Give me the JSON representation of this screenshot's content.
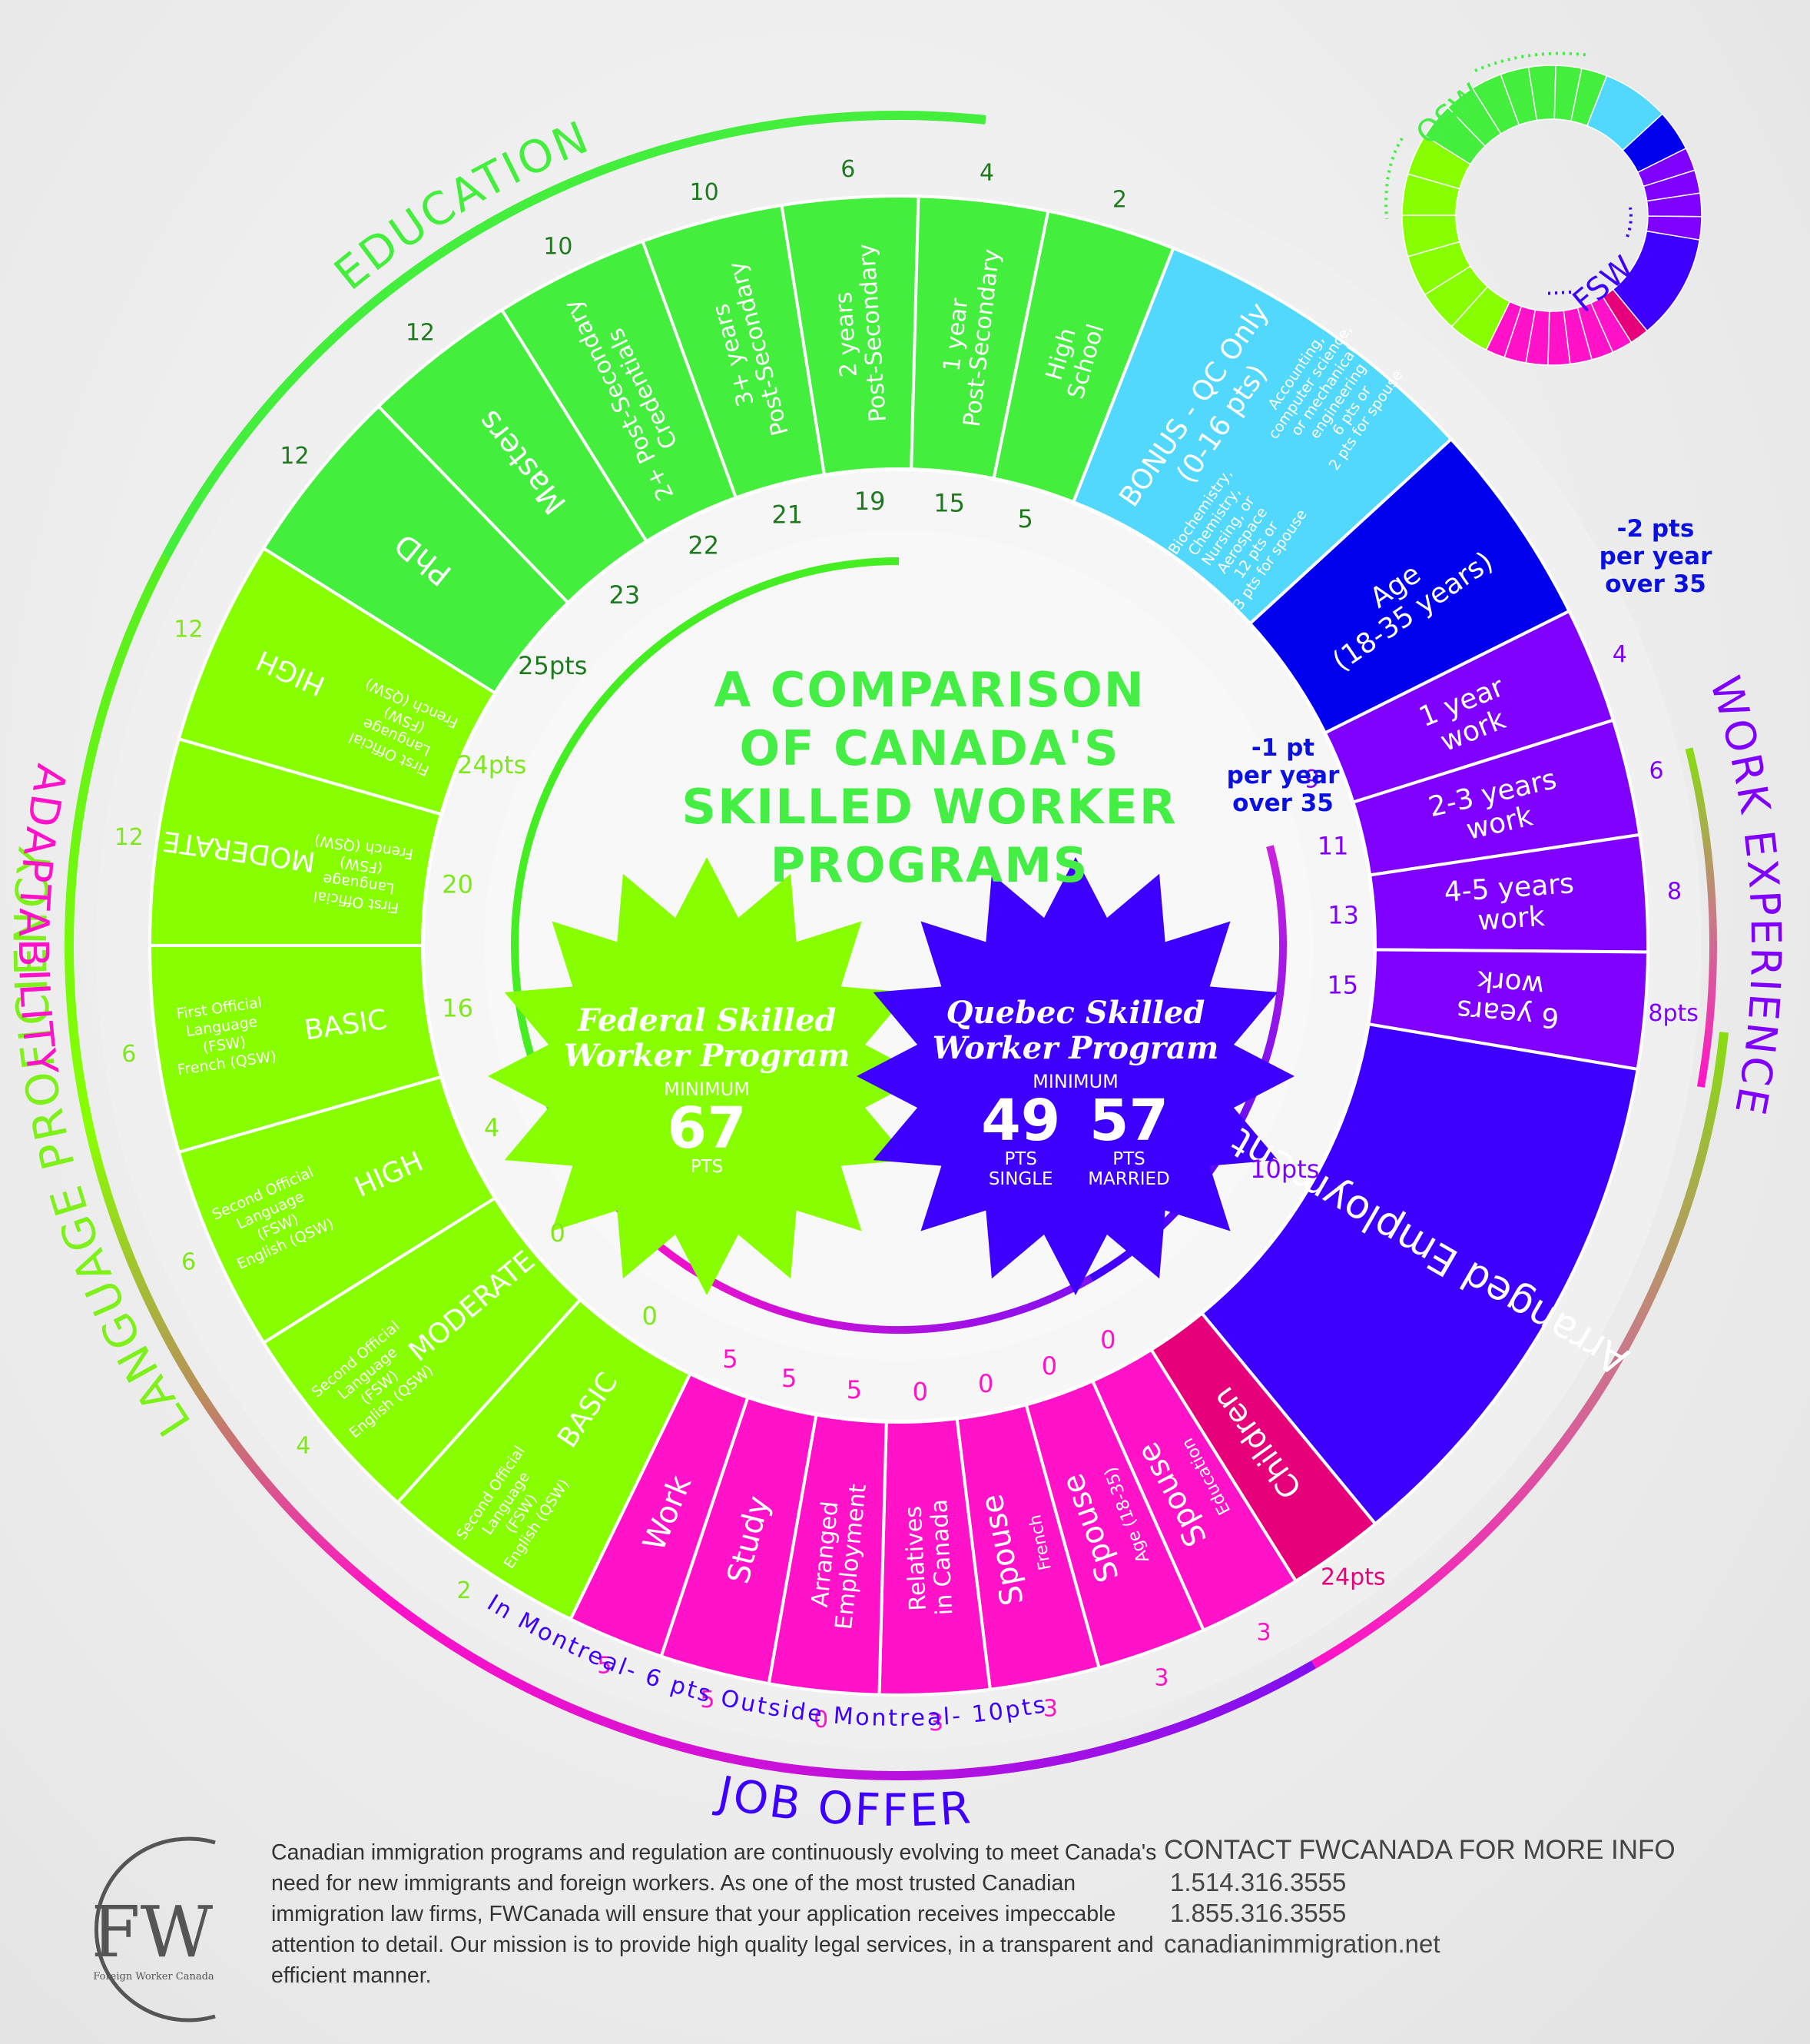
{
  "title": {
    "lines": [
      "A COMPARISON",
      "OF CANADA'S",
      "SKILLED WORKER",
      "PROGRAMS"
    ]
  },
  "colors": {
    "education": "#44ee3c",
    "language": "#88ff00",
    "adaptability": "#ff12c8",
    "children": "#e6007a",
    "job_offer": "#3d00ff",
    "work_experience": "#8000ff",
    "age": "#0000ee",
    "bonus": "#52d8fc",
    "qsw_text": "#1f7a1f"
  },
  "categories": {
    "education": {
      "label": "EDUCATION",
      "fsw_max": "25pts",
      "qsw_max": "12pts",
      "items": [
        {
          "label": "PhD",
          "fsw": "25pts",
          "qsw": "12"
        },
        {
          "label": "Masters",
          "fsw": "23",
          "qsw": "12"
        },
        {
          "label": "2+ Post-Secondary Credentials",
          "fsw": "22",
          "qsw": "10"
        },
        {
          "label": "3+ years Post-Secondary",
          "fsw": "21",
          "qsw": "10"
        },
        {
          "label": "2 years Post-Secondary",
          "fsw": "19",
          "qsw": "6"
        },
        {
          "label": "1 year Post-Secondary",
          "fsw": "15",
          "qsw": "4"
        },
        {
          "label": "High School",
          "fsw": "5",
          "qsw": "2"
        }
      ]
    },
    "bonus": {
      "label": "BONUS - QC Only (0-16 pts)",
      "left_note": "Biochemistry, Chemistry, Nursing, or Aerospace 12 pts or 3 pts for spouse",
      "right_note": "Accounting, computer science, or mechanical engineering 6 pts or 2 pts for spouse"
    },
    "age": {
      "label": "Age (18-35 years)",
      "fsw_note": "-1 pt per year over 35",
      "qsw_note": "-2 pts per year over 35"
    },
    "work_experience": {
      "label": "WORK EXPERIENCE",
      "fsw_max": "15",
      "qsw_max": "8pts",
      "items": [
        {
          "label": "1 year work",
          "fsw": "9",
          "qsw": "4"
        },
        {
          "label": "2-3 years work",
          "fsw": "11",
          "qsw": "6"
        },
        {
          "label": "4-5 years work",
          "fsw": "13",
          "qsw": "8"
        },
        {
          "label": "6 years work",
          "fsw": "15",
          "qsw": "8pts"
        }
      ]
    },
    "job_offer": {
      "label": "JOB OFFER",
      "item": "Arranged Employment",
      "fsw": "10pts",
      "qsw_in_montreal": "In Montreal- 6 pts",
      "qsw_outside_montreal": "Outside Montreal- 10pts"
    },
    "adaptability": {
      "label": "ADAPTABILITY",
      "fsw_max": "10pts",
      "qsw_max": "5pts",
      "items": [
        {
          "label": "Work",
          "fsw": "5",
          "qsw": "5"
        },
        {
          "label": "Study",
          "fsw": "5",
          "qsw": "5"
        },
        {
          "label": "Arranged Employment",
          "fsw": "5",
          "qsw": "0"
        },
        {
          "label": "Relatives in Canada",
          "fsw": "0",
          "qsw": "3"
        },
        {
          "label": "Spouse",
          "sub": "French",
          "fsw": "0",
          "qsw": "3"
        },
        {
          "label": "Spouse",
          "sub": "Age (18-35)",
          "fsw": "0",
          "qsw": "3"
        },
        {
          "label": "Spouse",
          "sub": "Education",
          "fsw": "0",
          "qsw": "3"
        },
        {
          "label": "Children",
          "fsw": "",
          "qsw": "24pts"
        }
      ]
    },
    "language": {
      "label": "LANGUAGE PROFICIENCY",
      "fsw_max": "24pts",
      "qsw_max": "16pts",
      "items": [
        {
          "desc": "First Official Language (FSW) French (QSW)",
          "level": "HIGH",
          "fsw": "24pts",
          "qsw": "12"
        },
        {
          "desc": "First Official Language (FSW) French (QSW)",
          "level": "MODERATE",
          "fsw": "20",
          "qsw": "12"
        },
        {
          "desc": "First Official Language (FSW) French (QSW)",
          "level": "BASIC",
          "fsw": "16",
          "qsw": "6"
        },
        {
          "desc": "Second Official Language (FSW) English (QSW)",
          "level": "HIGH",
          "fsw": "4",
          "qsw": "6"
        },
        {
          "desc": "Second Official Language (FSW) English (QSW)",
          "level": "MODERATE",
          "fsw": "0",
          "qsw": "4"
        },
        {
          "desc": "Second Official Language (FSW) English (QSW)",
          "level": "BASIC",
          "fsw": "0",
          "qsw": "2"
        }
      ]
    }
  },
  "badges": {
    "fsw": {
      "title_line1": "Federal Skilled",
      "title_line2": "Worker Program",
      "minimum": "MINIMUM",
      "value": "67",
      "unit": "PTS"
    },
    "qsw": {
      "title_line1": "Quebec Skilled",
      "title_line2": "Worker Program",
      "minimum": "MINIMUM",
      "single_value": "49",
      "single_unit": "PTS",
      "single_label": "SINGLE",
      "married_value": "57",
      "married_unit": "PTS",
      "married_label": "MARRIED"
    }
  },
  "legend": {
    "qsw": "QSW",
    "fsw": "FSW"
  },
  "footer": {
    "logo_letters": "FW",
    "logo_caption": "Foreign Worker Canada",
    "description": "Canadian immigration programs and regulation are continuously evolving to meet Canada's need for new immigrants and foreign workers. As one of the most trusted Canadian immigration law firms, FWCanada will ensure that your application receives impeccable attention to detail. Our mission is to provide high quality legal services, in a transparent and efficient manner.",
    "contact_title": "CONTACT FWCANADA FOR MORE INFO",
    "phone1": "1.514.316.3555",
    "phone2": "1.855.316.3555",
    "website": "canadianimmigration.net"
  }
}
